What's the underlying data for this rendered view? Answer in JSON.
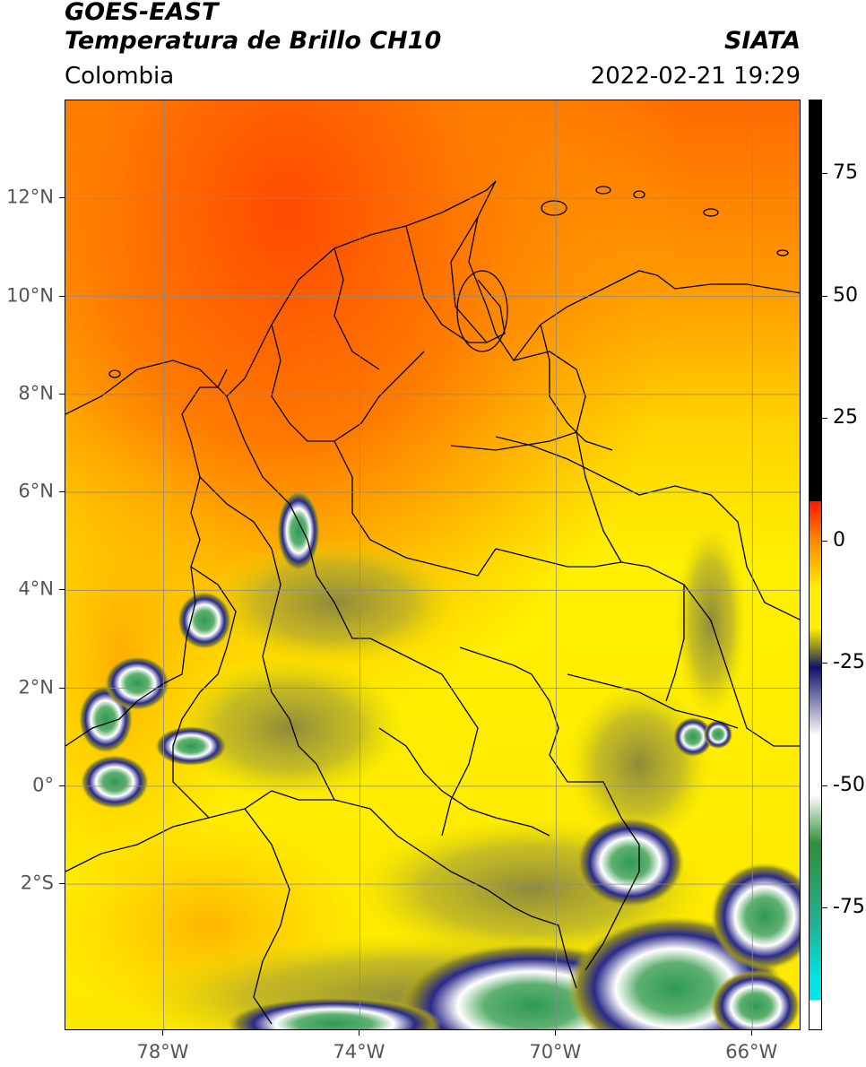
{
  "header": {
    "satellite": "GOES-EAST",
    "product": "Temperatura de Brillo CH10",
    "region": "Colombia",
    "agency": "SIATA",
    "datetime": "2022-02-21 19:29"
  },
  "map": {
    "lon_range": [
      -80,
      -65
    ],
    "lat_range": [
      -5,
      14
    ],
    "lon_ticks": [
      {
        "value": -78,
        "label": "78°W"
      },
      {
        "value": -74,
        "label": "74°W"
      },
      {
        "value": -70,
        "label": "70°W"
      },
      {
        "value": -66,
        "label": "66°W"
      }
    ],
    "lat_ticks": [
      {
        "value": 12,
        "label": "12°N"
      },
      {
        "value": 10,
        "label": "10°N"
      },
      {
        "value": 8,
        "label": "8°N"
      },
      {
        "value": 6,
        "label": "6°N"
      },
      {
        "value": 4,
        "label": "4°N"
      },
      {
        "value": 2,
        "label": "2°N"
      },
      {
        "value": 0,
        "label": "0°"
      },
      {
        "value": -2,
        "label": "2°S"
      }
    ],
    "grid": true
  },
  "colorbar": {
    "range": [
      -100,
      90
    ],
    "ticks": [
      {
        "value": 75,
        "label": "75"
      },
      {
        "value": 50,
        "label": "50"
      },
      {
        "value": 25,
        "label": "25"
      },
      {
        "value": 0,
        "label": "0"
      },
      {
        "value": -25,
        "label": "-25"
      },
      {
        "value": -50,
        "label": "-50"
      },
      {
        "value": -75,
        "label": "-75"
      }
    ],
    "colors": {
      "black": "#000000",
      "red": "#ff1a00",
      "orange": "#ff8800",
      "yellow": "#ffee00",
      "olive": "#8f8a22",
      "navy": "#10106e",
      "white": "#ffffff",
      "green": "#2f8f3a",
      "teal": "#20b090",
      "cyan": "#00e6e6"
    }
  }
}
